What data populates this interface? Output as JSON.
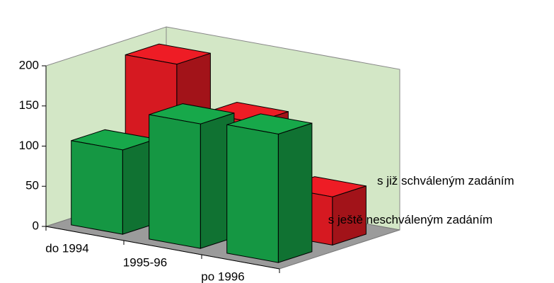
{
  "chart_data": {
    "type": "bar3d",
    "categories": [
      "do 1994",
      "1995-96",
      "po 1996"
    ],
    "series": [
      {
        "name": "s ještě neschváleným zadáním",
        "color": "#17a84a",
        "values": [
          105,
          155,
          160
        ]
      },
      {
        "name": "s již schváleným zadáním",
        "color": "#ee1c25",
        "values": [
          190,
          135,
          60
        ]
      }
    ],
    "ylim": [
      0,
      200
    ],
    "yticks": [
      0,
      50,
      100,
      150,
      200
    ]
  }
}
